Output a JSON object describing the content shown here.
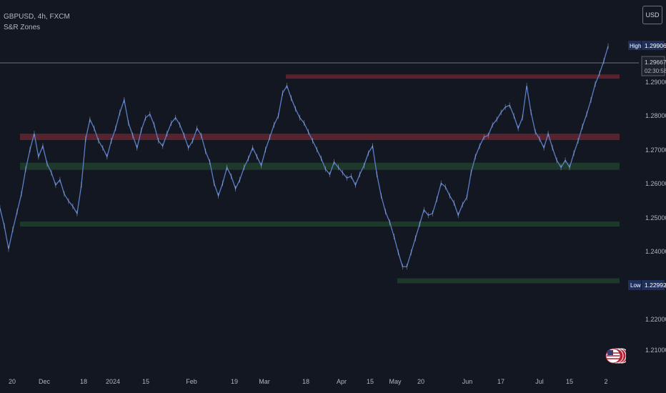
{
  "header": {
    "symbol_line": "GBPUSD, 4h, FXCM",
    "indicator": "S&R Zones"
  },
  "currency_button": "USD",
  "colors": {
    "background": "#131722",
    "price_line": "#5b7ec7",
    "resistance_zone": "#5a2430",
    "support_zone": "#1f3a2c",
    "axis_text": "#b2b5be",
    "label_bg": "#1e2f5a"
  },
  "chart_data": {
    "type": "line",
    "title": "",
    "xlabel": "",
    "ylabel": "",
    "ylim": [
      1.2045,
      1.3097
    ],
    "y_ticks": [
      "1.29000",
      "1.28000",
      "1.27000",
      "1.26000",
      "1.25000",
      "1.24000",
      "1.23000",
      "1.22000",
      "1.21000"
    ],
    "x_ticks": [
      "20",
      "Dec",
      "18",
      "2024",
      "15",
      "Feb",
      "19",
      "Mar",
      "18",
      "Apr",
      "15",
      "May",
      "20",
      "Jun",
      "17",
      "Jul",
      "15",
      "2"
    ],
    "high_label": {
      "text": "High",
      "value": "1.29906"
    },
    "low_label": {
      "text": "Low",
      "value": "1.22992"
    },
    "last_price": {
      "value": "1.29667",
      "countdown": "02:30:58"
    },
    "series": [
      {
        "values": [
          1.251,
          1.246,
          1.2395,
          1.245,
          1.25,
          1.255,
          1.262,
          1.2675,
          1.272,
          1.2655,
          1.2685,
          1.2635,
          1.261,
          1.2575,
          1.259,
          1.255,
          1.253,
          1.2515,
          1.2495,
          1.2575,
          1.2705,
          1.276,
          1.2735,
          1.27,
          1.268,
          1.2655,
          1.27,
          1.2735,
          1.278,
          1.2815,
          1.275,
          1.2715,
          1.268,
          1.273,
          1.2765,
          1.2775,
          1.2745,
          1.27,
          1.2685,
          1.272,
          1.275,
          1.2765,
          1.2745,
          1.2715,
          1.268,
          1.27,
          1.2735,
          1.2715,
          1.267,
          1.264,
          1.258,
          1.2545,
          1.258,
          1.2625,
          1.26,
          1.2565,
          1.259,
          1.2625,
          1.265,
          1.268,
          1.2655,
          1.263,
          1.2675,
          1.271,
          1.2745,
          1.277,
          1.2835,
          1.2855,
          1.282,
          1.279,
          1.2765,
          1.275,
          1.2725,
          1.27,
          1.2675,
          1.265,
          1.262,
          1.2605,
          1.264,
          1.2625,
          1.261,
          1.2595,
          1.26,
          1.2575,
          1.2605,
          1.263,
          1.2665,
          1.2685,
          1.2605,
          1.2545,
          1.25,
          1.247,
          1.243,
          1.2385,
          1.2345,
          1.2345,
          1.2385,
          1.2425,
          1.2465,
          1.2505,
          1.249,
          1.2495,
          1.2535,
          1.258,
          1.257,
          1.2545,
          1.2525,
          1.249,
          1.252,
          1.254,
          1.261,
          1.2655,
          1.2685,
          1.271,
          1.2715,
          1.2745,
          1.276,
          1.278,
          1.2795,
          1.28,
          1.277,
          1.2735,
          1.2765,
          1.2855,
          1.278,
          1.2725,
          1.2705,
          1.268,
          1.272,
          1.268,
          1.2645,
          1.2625,
          1.2645,
          1.2625,
          1.2665,
          1.27,
          1.274,
          1.2775,
          1.2815,
          1.286,
          1.289,
          1.2925,
          1.2967
        ]
      }
    ],
    "zones": [
      {
        "kind": "resistance",
        "low": 1.2875,
        "high": 1.2887,
        "from": "Mar",
        "to": "end"
      },
      {
        "kind": "resistance",
        "low": 1.2702,
        "high": 1.272,
        "from": "Nov",
        "to": "end"
      },
      {
        "kind": "support",
        "low": 1.2618,
        "high": 1.2638,
        "from": "Nov",
        "to": "end"
      },
      {
        "kind": "support",
        "low": 1.2458,
        "high": 1.2472,
        "from": "Nov",
        "to": "end"
      },
      {
        "kind": "support",
        "low": 1.2298,
        "high": 1.2312,
        "from": "Apr",
        "to": "end"
      }
    ],
    "grid": false
  }
}
